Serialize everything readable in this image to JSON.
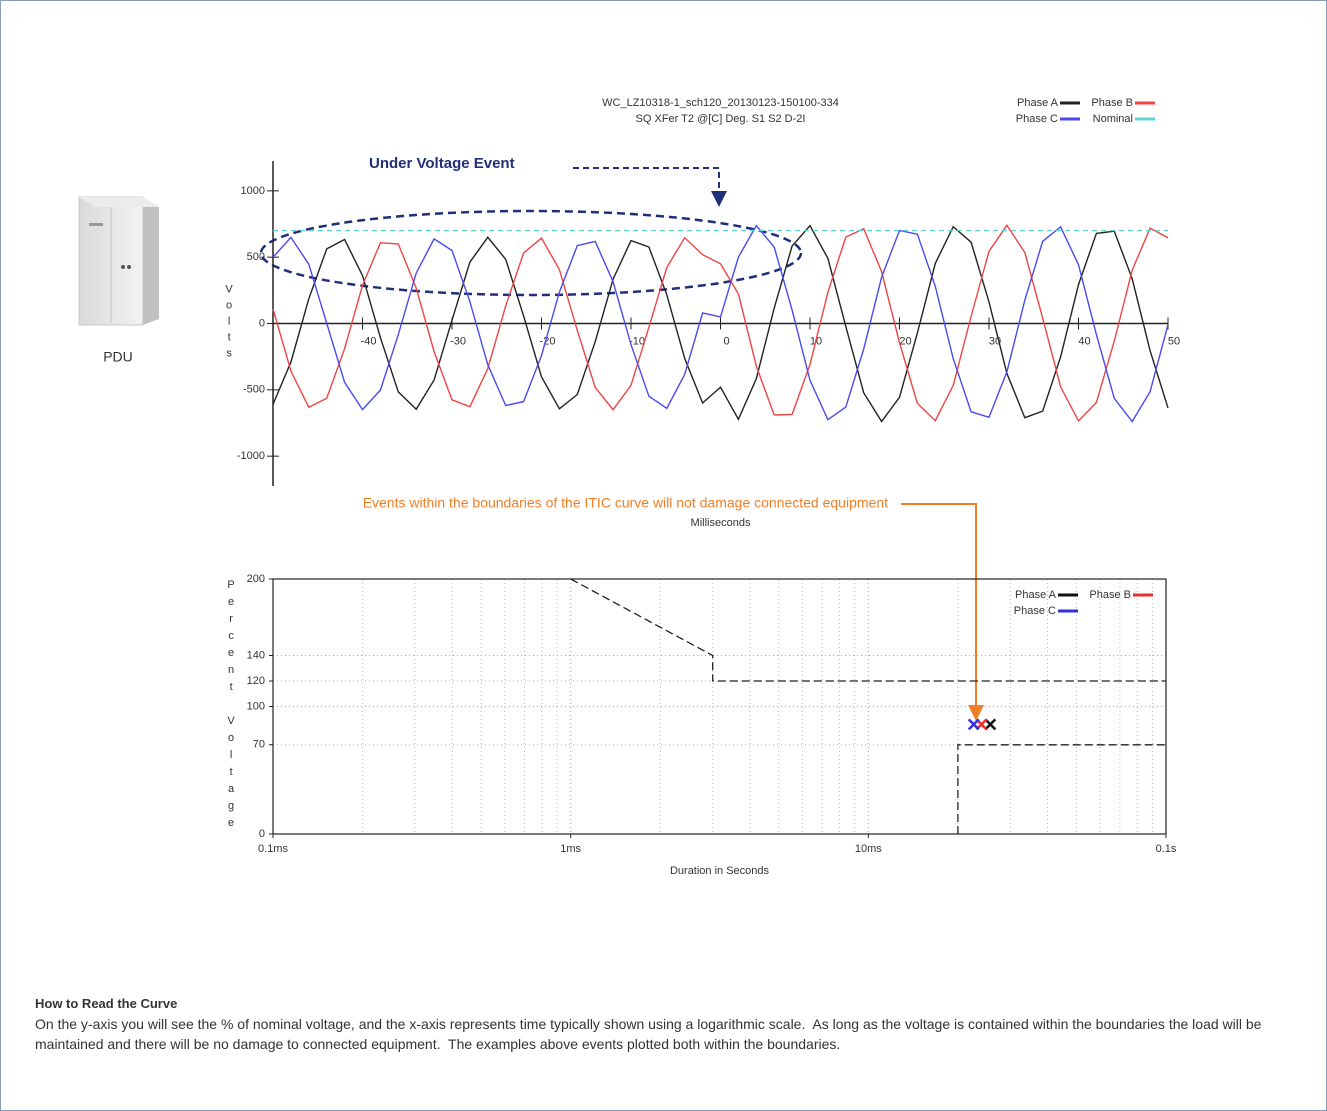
{
  "chart_data": [
    {
      "type": "line",
      "title": "WC_LZ10318-1_sch120_20130123-150100-334",
      "subtitle": "SQ XFer T2 @[C] Deg. S1 S2 D-2I",
      "x_label": "Milliseconds",
      "y_label": "Volts",
      "x": [
        -50,
        -48,
        -46,
        -44,
        -42,
        -40,
        -38,
        -36,
        -34,
        -32,
        -30,
        -28,
        -26,
        -24,
        -22,
        -20,
        -18,
        -16,
        -14,
        -12,
        -10,
        -8,
        -6,
        -4,
        -2,
        0,
        2,
        4,
        6,
        8,
        10,
        12,
        14,
        16,
        18,
        20,
        22,
        24,
        26,
        28,
        30,
        32,
        34,
        36,
        38,
        40,
        42,
        44,
        46,
        48,
        50
      ],
      "series": [
        {
          "name": "Phase A",
          "color": "#222222",
          "values": [
            -610,
            -291,
            186,
            562,
            633,
            361,
            -106,
            -516,
            -647,
            -426,
            25,
            463,
            650,
            484,
            57,
            -402,
            -643,
            -535,
            -137,
            335,
            625,
            577,
            216,
            -263,
            -599,
            -480,
            -722,
            -417,
            115,
            584,
            737,
            491,
            -22,
            -522,
            -739,
            -556,
            -71,
            453,
            730,
            613,
            163,
            -376,
            -710,
            -660,
            -252,
            293,
            679,
            696,
            337,
            -205,
            -636
          ]
        },
        {
          "name": "Phase B",
          "color": "#ee4444",
          "values": [
            111,
            -358,
            -632,
            -564,
            -190,
            287,
            608,
            600,
            267,
            -212,
            -575,
            -627,
            -339,
            133,
            532,
            644,
            406,
            -52,
            -482,
            -650,
            -466,
            -29,
            423,
            646,
            519,
            450,
            223,
            -321,
            -690,
            -685,
            -309,
            235,
            651,
            715,
            391,
            -145,
            -602,
            -733,
            -467,
            53,
            544,
            740,
            535,
            40,
            -477,
            -735,
            -595,
            -132,
            402,
            719,
            645
          ]
        },
        {
          "name": "Phase C",
          "color": "#4a4aee",
          "values": [
            499,
            649,
            447,
            2,
            -443,
            -649,
            -502,
            -84,
            380,
            638,
            550,
            164,
            -311,
            -618,
            -589,
            -241,
            237,
            587,
            619,
            315,
            -159,
            -548,
            -639,
            -384,
            79,
            50,
            500,
            738,
            576,
            101,
            -428,
            -725,
            -630,
            -192,
            349,
            701,
            673,
            280,
            -264,
            -666,
            -707,
            -364,
            175,
            620,
            729,
            443,
            -84,
            -565,
            -739,
            -513,
            -9
          ]
        },
        {
          "name": "Nominal",
          "color": "#5fd3d3",
          "dashed": true,
          "x": [
            -50,
            50
          ],
          "values": [
            700,
            700
          ]
        }
      ],
      "xlim": [
        -50,
        50
      ],
      "xticks": [
        -40,
        -30,
        -20,
        -10,
        0,
        10,
        20,
        30,
        40,
        50
      ],
      "ylim": [
        -1225,
        1225
      ],
      "yticks": [
        -1000,
        -500,
        0,
        500,
        1000
      ],
      "grid": false,
      "legend": "top-right"
    },
    {
      "type": "scatter",
      "x_label": "Duration in Seconds",
      "y_label": "Percent Voltage",
      "xscale": "log",
      "xlim": [
        0.0001,
        0.1
      ],
      "xticks": [
        {
          "value": 0.0001,
          "label": "0.1ms"
        },
        {
          "value": 0.001,
          "label": "1ms"
        },
        {
          "value": 0.01,
          "label": "10ms"
        },
        {
          "value": 0.1,
          "label": "0.1s"
        }
      ],
      "x_minor_ticks": [
        0.0002,
        0.0003,
        0.0004,
        0.0005,
        0.0006,
        0.0007,
        0.0008,
        0.0009,
        0.002,
        0.003,
        0.004,
        0.005,
        0.006,
        0.007,
        0.008,
        0.009,
        0.02,
        0.03,
        0.04,
        0.05,
        0.06,
        0.07,
        0.08,
        0.09
      ],
      "ylim": [
        0,
        200
      ],
      "yticks": [
        0,
        70,
        100,
        120,
        140,
        200
      ],
      "grid": true,
      "legend": "top-right",
      "boundary_color": "#222222",
      "boundaries": [
        {
          "x": [
            0.001,
            0.003,
            0.003,
            0.1
          ],
          "values": [
            200,
            140,
            120,
            120
          ]
        },
        {
          "x": [
            0.02,
            0.02,
            0.1
          ],
          "values": [
            0,
            70,
            70
          ]
        }
      ],
      "series": [
        {
          "name": "Phase A",
          "color": "#111111",
          "x": [
            0.0257
          ],
          "values": [
            86
          ]
        },
        {
          "name": "Phase B",
          "color": "#e83030",
          "x": [
            0.024
          ],
          "values": [
            86
          ]
        },
        {
          "name": "Phase C",
          "color": "#3030e0",
          "x": [
            0.0226
          ],
          "values": [
            86
          ]
        }
      ]
    }
  ],
  "pdu_label": "PDU",
  "annotations": {
    "under_voltage": "Under Voltage Event",
    "itic_callout": "Events within the boundaries of the ITIC curve will not damage connected equipment"
  },
  "notes": {
    "heading": "How to Read the Curve",
    "body": "On the y-axis you will see the % of nominal voltage, and the x-axis represents time typically shown using a logarithmic scale.  As long as the voltage is contained within the boundaries the load will be maintained and there will be no damage to connected equipment.  The examples above events plotted both within the boundaries."
  }
}
